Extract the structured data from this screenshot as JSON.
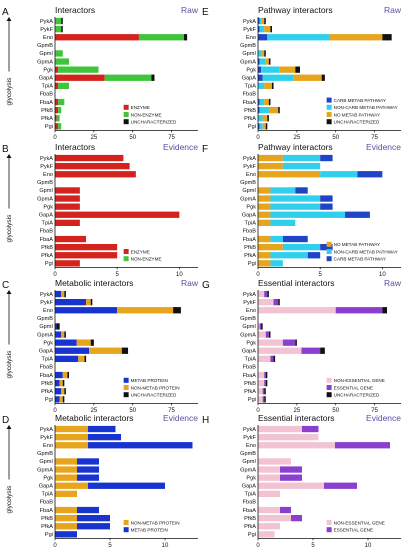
{
  "figure": {
    "side_label": "glycolysis"
  },
  "colors": {
    "enzyme": "#d4231c",
    "nonenzyme": "#3fc43a",
    "uncharacterized": "#111111",
    "carb": "#1f44c8",
    "noncarb": "#2fd0ee",
    "nomet": "#e6a51c",
    "metab": "#1733d0",
    "nonmetab": "#e6a51c",
    "essential": "#8a3fcf",
    "nonessential": "#f2c3d3"
  },
  "chart_data": [
    {
      "letter": "A",
      "title": "Interactors",
      "tag": "Raw",
      "type": "bar",
      "categories": [
        "PykA",
        "PykF",
        "Eno",
        "GpmB",
        "GpmI",
        "GpmA",
        "Pgk",
        "GapA",
        "TpiA",
        "FbaB",
        "FbaA",
        "PfkB",
        "PfkA",
        "Pgi"
      ],
      "xticks": [
        0,
        25,
        50,
        75
      ],
      "xlim": [
        0,
        92
      ],
      "series": [
        {
          "name": "ENZYME",
          "color_key": "enzyme",
          "values": [
            0,
            0,
            54,
            0,
            0,
            0,
            2,
            32,
            2,
            0,
            2,
            2,
            1,
            2
          ]
        },
        {
          "name": "NON-ENZYME",
          "color_key": "nonenzyme",
          "values": [
            4,
            4,
            29,
            0,
            5,
            9,
            26,
            30,
            7,
            0,
            4,
            2,
            2,
            2
          ]
        },
        {
          "name": "UNCHARACTERIZED",
          "color_key": "uncharacterized",
          "values": [
            1,
            1,
            2,
            0,
            0,
            0,
            0,
            2,
            0,
            0,
            0,
            0,
            0,
            0
          ]
        }
      ],
      "legend_position": "lower-right"
    },
    {
      "letter": "B",
      "title": "Interactors",
      "tag": "Evidence",
      "type": "bar",
      "categories": [
        "PykA",
        "PykF",
        "Eno",
        "GpmB",
        "GpmI",
        "GpmA",
        "Pgk",
        "GapA",
        "TpiA",
        "FbaB",
        "FbaA",
        "PfkB",
        "PfkA",
        "Pgi"
      ],
      "xticks": [
        0,
        5,
        10
      ],
      "xlim": [
        0,
        11.5
      ],
      "series": [
        {
          "name": "ENZYME",
          "color_key": "enzyme",
          "values": [
            5.5,
            6,
            6.5,
            0,
            2,
            2,
            2,
            10,
            2,
            0,
            2.5,
            5,
            5,
            2
          ]
        },
        {
          "name": "NON-ENZYME",
          "color_key": "nonenzyme",
          "values": [
            0,
            0,
            0,
            0,
            0,
            0,
            0,
            0,
            0,
            0,
            0,
            0,
            0,
            0
          ]
        }
      ],
      "legend_position": "lower-right"
    },
    {
      "letter": "C",
      "title": "Metabolic interactors",
      "tag": "Raw",
      "type": "bar",
      "categories": [
        "PykA",
        "PykF",
        "Eno",
        "GpmB",
        "GpmI",
        "GpmA",
        "Pgk",
        "GapA",
        "TpiA",
        "FbaB",
        "FbaA",
        "PfkB",
        "PfkA",
        "Pgi"
      ],
      "xticks": [
        0,
        25,
        50,
        75
      ],
      "xlim": [
        0,
        92
      ],
      "series": [
        {
          "name": "METAB PROTEIN",
          "color_key": "metab",
          "values": [
            4,
            20,
            40,
            0,
            1,
            4,
            14,
            22,
            15,
            0,
            5,
            3,
            4,
            3
          ]
        },
        {
          "name": "NON-METAB PROTEIN",
          "color_key": "nonmetab",
          "values": [
            2,
            3,
            36,
            0,
            0,
            2,
            9,
            21,
            4,
            0,
            3,
            2,
            2,
            2
          ]
        },
        {
          "name": "UNCHARACTERIZED",
          "color_key": "uncharacterized",
          "values": [
            1,
            1,
            5,
            0,
            2,
            1,
            2,
            4,
            1,
            0,
            1,
            1,
            1,
            1
          ]
        }
      ],
      "legend_position": "lower-right"
    },
    {
      "letter": "D",
      "title": "Metabolic interactors",
      "tag": "Evidence",
      "type": "bar",
      "categories": [
        "PykA",
        "PykF",
        "Eno",
        "GpmB",
        "GpmI",
        "GpmA",
        "Pgk",
        "GapA",
        "TpiA",
        "FbaB",
        "FbaA",
        "PfkB",
        "PfkA",
        "Pgi"
      ],
      "xticks": [
        0,
        5,
        10
      ],
      "xlim": [
        0,
        13
      ],
      "series": [
        {
          "name": "NON-METAB PROTEIN",
          "color_key": "nonmetab",
          "values": [
            3,
            3,
            3,
            0,
            2,
            2,
            2,
            3,
            2,
            0,
            2,
            2,
            2,
            0
          ]
        },
        {
          "name": "METAB PROTEIN",
          "color_key": "metab",
          "values": [
            2.5,
            3,
            9.5,
            0,
            2,
            2,
            2,
            7,
            0,
            0,
            2,
            3,
            3,
            2
          ]
        }
      ],
      "legend_position": "lower-right"
    },
    {
      "letter": "E",
      "title": "Pathway interactors",
      "tag": "Raw",
      "type": "bar",
      "categories": [
        "PykA",
        "PykF",
        "Eno",
        "GpmB",
        "GpmI",
        "GpmA",
        "Pgk",
        "GapA",
        "TpiA",
        "FbaB",
        "FbaA",
        "PfkB",
        "PfkA",
        "Pgi"
      ],
      "xticks": [
        0,
        25,
        50,
        75
      ],
      "xlim": [
        0,
        92
      ],
      "series": [
        {
          "name": "CARB METAB PATHWAY",
          "color_key": "carb",
          "values": [
            1,
            1,
            6,
            0,
            0,
            1,
            2,
            3,
            0,
            0,
            1,
            1,
            0,
            1
          ]
        },
        {
          "name": "NON-CARB METAB PATHWAY",
          "color_key": "noncarb",
          "values": [
            1,
            3,
            40,
            0,
            2,
            4,
            12,
            20,
            4,
            0,
            3,
            6,
            3,
            2
          ]
        },
        {
          "name": "NO METAB PATHWAY",
          "color_key": "nomet",
          "values": [
            2,
            4,
            34,
            0,
            2,
            2,
            10,
            18,
            5,
            0,
            3,
            6,
            3,
            2
          ]
        },
        {
          "name": "UNCHARACTERIZED",
          "color_key": "uncharacterized",
          "values": [
            1,
            1,
            6,
            0,
            1,
            1,
            3,
            2,
            1,
            0,
            1,
            1,
            1,
            1
          ]
        }
      ],
      "legend_position": "lower-right"
    },
    {
      "letter": "F",
      "title": "Pathway interactors",
      "tag": "Evidence",
      "type": "bar",
      "categories": [
        "PykA",
        "PykF",
        "Eno",
        "GpmB",
        "GpmI",
        "GpmA",
        "Pgk",
        "GapA",
        "TpiA",
        "FbaB",
        "FbaA",
        "PfkB",
        "PfkA",
        "Pgi"
      ],
      "xticks": [
        0,
        5,
        10
      ],
      "xlim": [
        0,
        11.5
      ],
      "series": [
        {
          "name": "NO METAB PATHWAY",
          "color_key": "nomet",
          "values": [
            2,
            2,
            5,
            0,
            1,
            1,
            1,
            1,
            1,
            0,
            1,
            2,
            1,
            1
          ]
        },
        {
          "name": "NON-CARB METAB PATHWAY",
          "color_key": "noncarb",
          "values": [
            3,
            3,
            3,
            0,
            2,
            4,
            4,
            6,
            2,
            0,
            1,
            3,
            3,
            1
          ]
        },
        {
          "name": "CARB METAB PATHWAY",
          "color_key": "carb",
          "values": [
            1,
            0,
            2,
            0,
            1,
            1,
            1,
            2,
            0,
            0,
            2,
            1,
            1,
            0
          ]
        }
      ],
      "legend_position": "lower-right"
    },
    {
      "letter": "G",
      "title": "Essential interactors",
      "tag": "Raw",
      "type": "bar",
      "categories": [
        "PykA",
        "PykF",
        "Eno",
        "GpmB",
        "GpmI",
        "GpmA",
        "Pgk",
        "GapA",
        "TpiA",
        "FbaB",
        "FbaA",
        "PfkB",
        "PfkA",
        "Pgi"
      ],
      "xticks": [
        0,
        25,
        50,
        75
      ],
      "xlim": [
        0,
        92
      ],
      "series": [
        {
          "name": "NON-ESSENTIAL GENE",
          "color_key": "nonessential",
          "values": [
            4,
            10,
            50,
            0,
            1,
            5,
            16,
            28,
            8,
            0,
            4,
            4,
            3,
            3
          ]
        },
        {
          "name": "ESSENTIAL GENE",
          "color_key": "essential",
          "values": [
            2,
            3,
            30,
            0,
            1,
            2,
            8,
            12,
            2,
            0,
            1,
            1,
            1,
            1
          ]
        },
        {
          "name": "UNCHARACTERIZED",
          "color_key": "uncharacterized",
          "values": [
            1,
            1,
            3,
            0,
            1,
            1,
            1,
            3,
            1,
            0,
            1,
            1,
            1,
            1
          ]
        }
      ],
      "legend_position": "lower-right"
    },
    {
      "letter": "H",
      "title": "Essential interactors",
      "tag": "Evidence",
      "type": "bar",
      "categories": [
        "PykA",
        "PykF",
        "Eno",
        "GpmB",
        "GpmI",
        "GpmA",
        "Pgk",
        "GapA",
        "TpiA",
        "FbaB",
        "FbaA",
        "PfkB",
        "PfkA",
        "Pgi"
      ],
      "xticks": [
        0,
        5,
        10
      ],
      "xlim": [
        0,
        13
      ],
      "series": [
        {
          "name": "NON-ESSENTIAL GENE",
          "color_key": "nonessential",
          "values": [
            4,
            5.5,
            7,
            0,
            3,
            2,
            2,
            6,
            2,
            0,
            2,
            3,
            2,
            1.5
          ]
        },
        {
          "name": "ESSENTIAL GENE",
          "color_key": "essential",
          "values": [
            1.5,
            0,
            5,
            0,
            0,
            2,
            2,
            3,
            0,
            0,
            1,
            1,
            0,
            0
          ]
        }
      ],
      "legend_position": "lower-right"
    }
  ]
}
